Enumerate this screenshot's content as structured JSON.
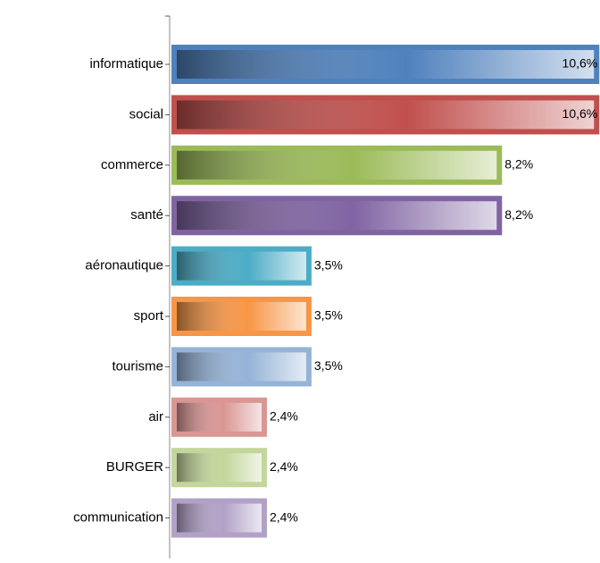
{
  "chart_data": {
    "type": "bar",
    "orientation": "horizontal",
    "categories": [
      "informatique",
      "social",
      "commerce",
      "santé",
      "aéronautique",
      "sport",
      "tourisme",
      "air",
      "BURGER",
      "communication"
    ],
    "values": [
      10.6,
      10.6,
      8.2,
      8.2,
      3.5,
      3.5,
      3.5,
      2.4,
      2.4,
      2.4
    ],
    "value_labels": [
      "10,6%",
      "10,6%",
      "8,2%",
      "8,2%",
      "3,5%",
      "3,5%",
      "3,5%",
      "2,4%",
      "2,4%",
      "2,4%"
    ],
    "colors": [
      "#4f81bd",
      "#c0504d",
      "#9bbb59",
      "#8064a2",
      "#4bacc6",
      "#f79646",
      "#95b3d7",
      "#d99694",
      "#c3d69b",
      "#b2a1c7"
    ]
  }
}
